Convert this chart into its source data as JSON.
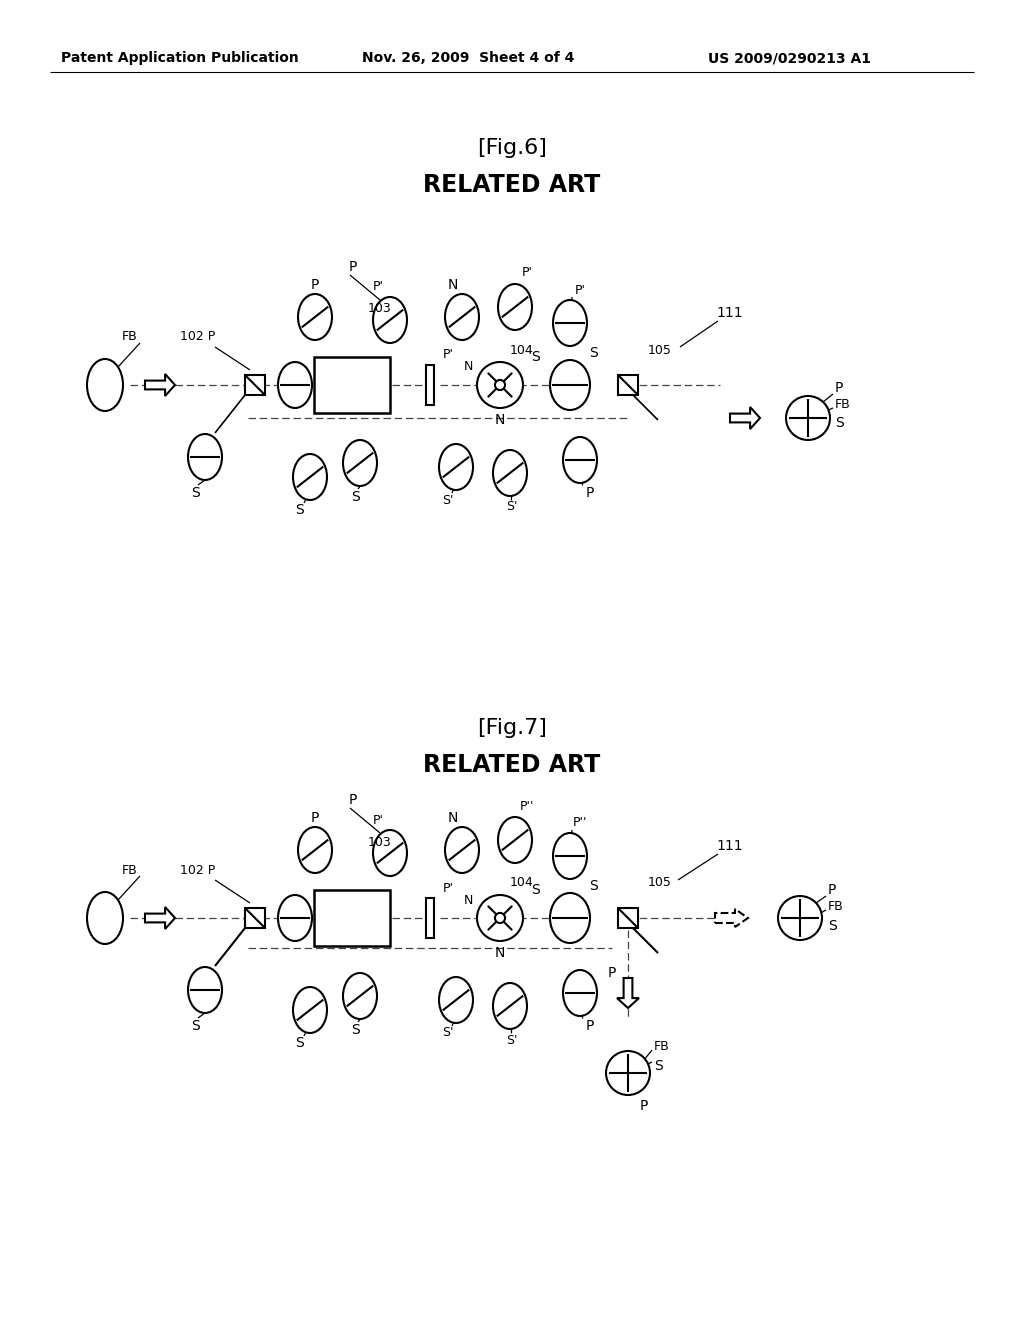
{
  "bg_color": "#ffffff",
  "header_left": "Patent Application Publication",
  "header_mid": "Nov. 26, 2009  Sheet 4 of 4",
  "header_right": "US 2009/0290213 A1",
  "fig6_title1": "[Fig.6]",
  "fig6_title2": "RELATED ART",
  "fig7_title1": "[Fig.7]",
  "fig7_title2": "RELATED ART"
}
